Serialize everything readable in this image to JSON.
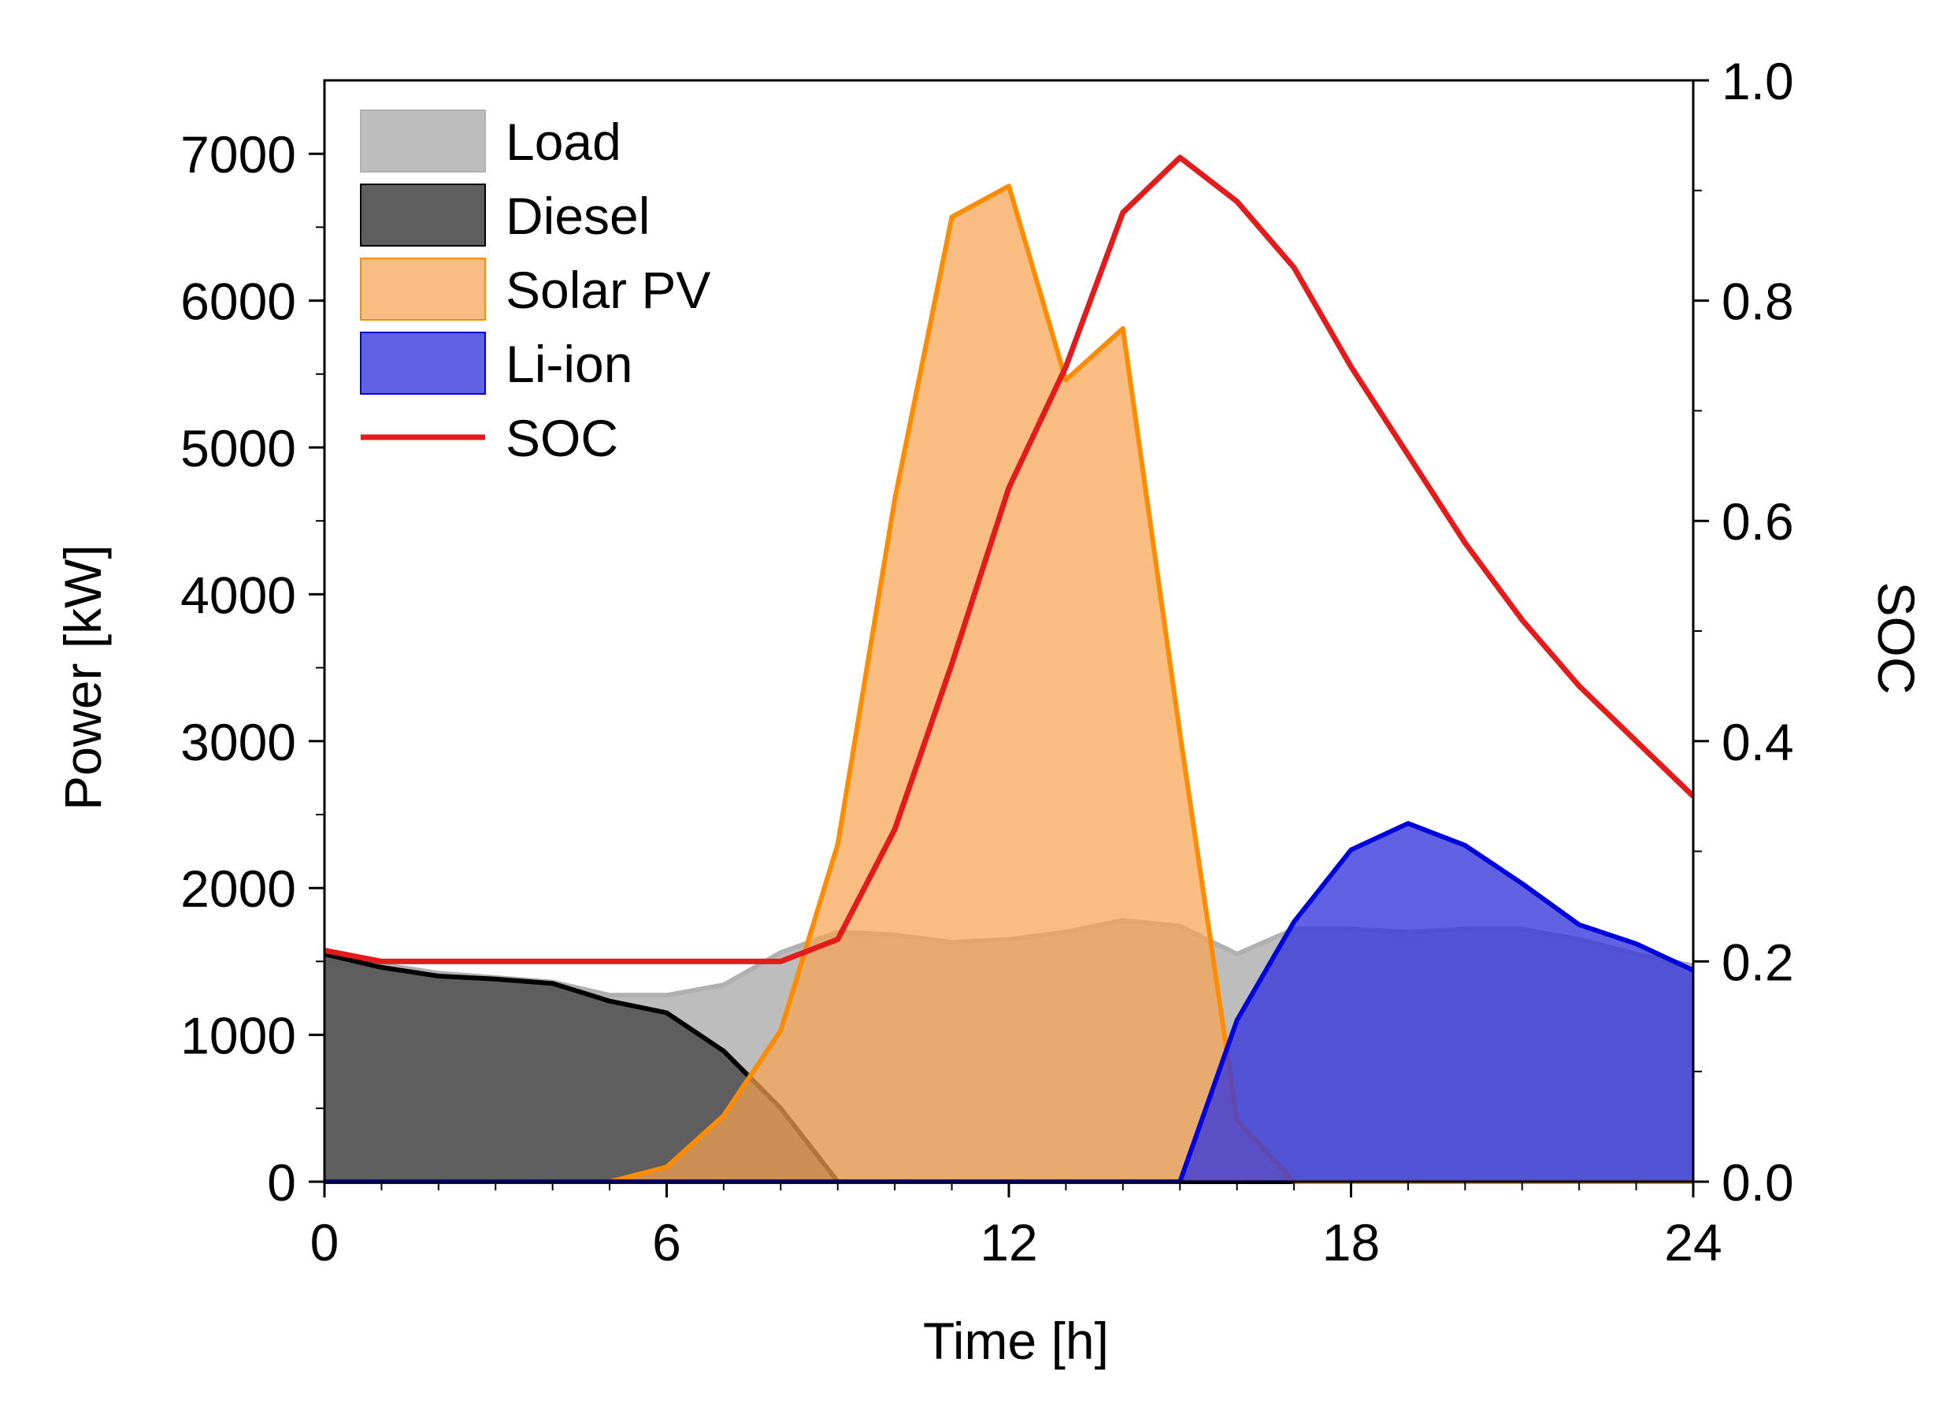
{
  "chart_data": {
    "type": "area",
    "xlabel": "Time [h]",
    "ylabel": "Power [kW]",
    "y2label": "SOC",
    "xlim": [
      0,
      24
    ],
    "ylim": [
      0,
      7500
    ],
    "y2lim": [
      0,
      1.0
    ],
    "xticks": [
      0,
      6,
      12,
      18,
      24
    ],
    "xtick_labels": [
      "0",
      "6",
      "12",
      "18",
      "24"
    ],
    "yticks": [
      0,
      1000,
      2000,
      3000,
      4000,
      5000,
      6000,
      7000
    ],
    "ytick_labels": [
      "0",
      "1000",
      "2000",
      "3000",
      "4000",
      "5000",
      "6000",
      "7000"
    ],
    "y2ticks": [
      0.0,
      0.2,
      0.4,
      0.6,
      0.8,
      1.0
    ],
    "y2tick_labels": [
      "0.0",
      "0.2",
      "0.4",
      "0.6",
      "0.8",
      "1.0"
    ],
    "legend_position": "top-left",
    "x": [
      0,
      1,
      2,
      3,
      4,
      5,
      6,
      7,
      8,
      9,
      10,
      11,
      12,
      13,
      14,
      15,
      16,
      17,
      18,
      19,
      20,
      21,
      22,
      23,
      24
    ],
    "series": [
      {
        "name": "Load",
        "kind": "area",
        "axis": "left",
        "fill": "#bdbdbd",
        "stroke": "#b0b0b0",
        "values": [
          1550,
          1480,
          1420,
          1390,
          1360,
          1270,
          1270,
          1340,
          1560,
          1700,
          1680,
          1630,
          1650,
          1700,
          1780,
          1740,
          1550,
          1720,
          1720,
          1700,
          1720,
          1720,
          1650,
          1550,
          1470
        ]
      },
      {
        "name": "Diesel",
        "kind": "area",
        "axis": "left",
        "fill": "#5e5e5e",
        "stroke": "#000000",
        "values": [
          1550,
          1460,
          1400,
          1380,
          1350,
          1230,
          1150,
          890,
          500,
          0,
          0,
          0,
          0,
          0,
          0,
          0,
          0,
          0,
          0,
          0,
          0,
          0,
          0,
          0,
          0
        ]
      },
      {
        "name": "Solar PV",
        "kind": "area",
        "axis": "left",
        "fill": "#f7a251",
        "fill_opacity": 0.72,
        "stroke": "#ff8c00",
        "values": [
          0,
          0,
          0,
          0,
          0,
          0,
          100,
          450,
          1030,
          2300,
          4650,
          6570,
          6780,
          5460,
          5810,
          3050,
          420,
          0,
          0,
          0,
          0,
          0,
          0,
          0,
          0
        ]
      },
      {
        "name": "Li-ion",
        "kind": "area",
        "axis": "left",
        "fill": "#3535dc",
        "fill_opacity": 0.78,
        "stroke": "#0000dd",
        "values": [
          0,
          0,
          0,
          0,
          0,
          0,
          0,
          0,
          0,
          0,
          0,
          0,
          0,
          0,
          0,
          0,
          1100,
          1770,
          2260,
          2440,
          2290,
          2030,
          1750,
          1620,
          1440
        ]
      },
      {
        "name": "SOC",
        "kind": "line",
        "axis": "right",
        "stroke": "#e31b1b",
        "values": [
          0.21,
          0.2,
          0.2,
          0.2,
          0.2,
          0.2,
          0.2,
          0.2,
          0.2,
          0.22,
          0.32,
          0.47,
          0.63,
          0.74,
          0.88,
          0.93,
          0.89,
          0.83,
          0.74,
          0.66,
          0.58,
          0.51,
          0.45,
          0.4,
          0.35
        ]
      }
    ]
  }
}
